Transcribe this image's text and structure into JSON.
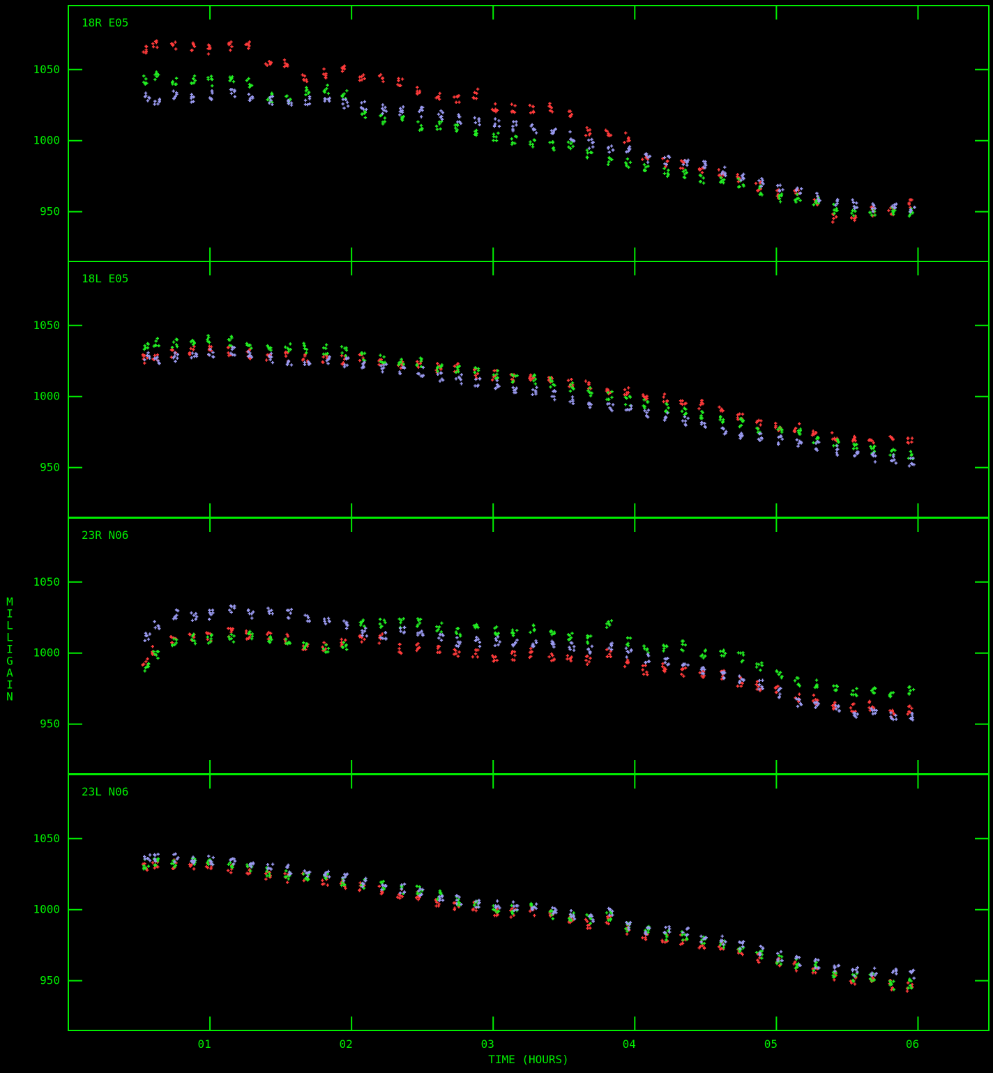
{
  "colors": {
    "axes": "#00ee00",
    "series_a": "#ff3b3b",
    "series_b": "#22ee22",
    "series_c": "#9a9af0",
    "background": "#000000"
  },
  "chart_data": {
    "type": "scatter",
    "xlabel": "TIME (HOURS)",
    "ylabel": "MILLIGAIN",
    "xlim": [
      0.0,
      6.5
    ],
    "x_ticks": [
      1,
      2,
      3,
      4,
      5,
      6
    ],
    "x_tick_labels": [
      "01",
      "02",
      "03",
      "04",
      "05",
      "06"
    ],
    "grid": false,
    "x": [
      0.55,
      0.62,
      0.75,
      0.88,
      1.0,
      1.15,
      1.28,
      1.42,
      1.55,
      1.68,
      1.82,
      1.95,
      2.08,
      2.22,
      2.35,
      2.48,
      2.62,
      2.75,
      2.88,
      3.02,
      3.15,
      3.28,
      3.42,
      3.55,
      3.68,
      3.82,
      3.95,
      4.08,
      4.22,
      4.35,
      4.48,
      4.62,
      4.75,
      4.88,
      5.02,
      5.15,
      5.28,
      5.42,
      5.55,
      5.68,
      5.82,
      5.95
    ],
    "panels": [
      {
        "label": "18R E05",
        "ylim": [
          915,
          1095
        ],
        "y_ticks": [
          950,
          1000,
          1050
        ],
        "series": [
          {
            "color_key": "series_a",
            "values": [
              1065,
              1068,
              1067,
              1066,
              1064,
              1066,
              1068,
              1055,
              1055,
              1045,
              1047,
              1050,
              1045,
              1043,
              1042,
              1035,
              1030,
              1030,
              1033,
              1023,
              1023,
              1022,
              1023,
              1018,
              1007,
              1005,
              1002,
              988,
              985,
              983,
              978,
              977,
              973,
              968,
              962,
              965,
              958,
              945,
              945,
              950,
              950,
              955
            ]
          },
          {
            "color_key": "series_b",
            "values": [
              1043,
              1045,
              1042,
              1043,
              1042,
              1043,
              1041,
              1030,
              1030,
              1035,
              1036,
              1032,
              1018,
              1015,
              1015,
              1010,
              1010,
              1009,
              1005,
              1003,
              1000,
              998,
              996,
              996,
              990,
              986,
              984,
              980,
              978,
              976,
              973,
              971,
              970,
              965,
              960,
              960,
              957,
              952,
              950,
              950,
              950,
              950
            ]
          },
          {
            "color_key": "series_c",
            "values": [
              1030,
              1028,
              1032,
              1030,
              1032,
              1034,
              1030,
              1028,
              1027,
              1028,
              1028,
              1026,
              1024,
              1022,
              1021,
              1020,
              1018,
              1015,
              1013,
              1012,
              1010,
              1008,
              1005,
              1003,
              998,
              995,
              993,
              988,
              986,
              984,
              982,
              978,
              975,
              970,
              967,
              965,
              960,
              957,
              955,
              953,
              952,
              952
            ]
          }
        ]
      },
      {
        "label": "18L E05",
        "ylim": [
          915,
          1095
        ],
        "y_ticks": [
          950,
          1000,
          1050
        ],
        "series": [
          {
            "color_key": "series_a",
            "values": [
              1026,
              1028,
              1030,
              1032,
              1032,
              1032,
              1030,
              1029,
              1028,
              1027,
              1026,
              1026,
              1026,
              1025,
              1023,
              1022,
              1020,
              1020,
              1016,
              1015,
              1013,
              1013,
              1012,
              1010,
              1008,
              1005,
              1003,
              1000,
              999,
              997,
              994,
              990,
              986,
              981,
              979,
              978,
              974,
              972,
              970,
              970,
              969,
              968
            ]
          },
          {
            "color_key": "series_b",
            "values": [
              1034,
              1038,
              1037,
              1040,
              1040,
              1039,
              1037,
              1036,
              1035,
              1034,
              1033,
              1032,
              1028,
              1027,
              1025,
              1024,
              1021,
              1020,
              1017,
              1015,
              1012,
              1012,
              1010,
              1007,
              1003,
              1000,
              997,
              995,
              992,
              990,
              988,
              985,
              982,
              977,
              975,
              976,
              970,
              967,
              964,
              962,
              960,
              959
            ]
          },
          {
            "color_key": "series_c",
            "values": [
              1028,
              1026,
              1028,
              1030,
              1031,
              1032,
              1029,
              1027,
              1025,
              1024,
              1025,
              1024,
              1022,
              1020,
              1019,
              1017,
              1014,
              1012,
              1010,
              1009,
              1006,
              1004,
              1001,
              998,
              995,
              992,
              990,
              987,
              985,
              983,
              981,
              977,
              974,
              971,
              969,
              967,
              965,
              962,
              960,
              957,
              956,
              954
            ]
          }
        ]
      },
      {
        "label": "23R N06",
        "ylim": [
          915,
          1095
        ],
        "y_ticks": [
          950,
          1000,
          1050
        ],
        "series": [
          {
            "color_key": "series_a",
            "values": [
              994,
              1002,
              1010,
              1010,
              1012,
              1015,
              1013,
              1012,
              1010,
              1005,
              1005,
              1008,
              1010,
              1010,
              1003,
              1005,
              1003,
              1000,
              1000,
              997,
              998,
              1000,
              998,
              997,
              995,
              1000,
              992,
              988,
              990,
              987,
              985,
              985,
              980,
              977,
              974,
              968,
              967,
              963,
              962,
              963,
              958,
              960
            ]
          },
          {
            "color_key": "series_b",
            "values": [
              990,
              998,
              1008,
              1010,
              1010,
              1010,
              1012,
              1010,
              1008,
              1006,
              1004,
              1005,
              1022,
              1021,
              1021,
              1022,
              1018,
              1015,
              1017,
              1015,
              1015,
              1017,
              1015,
              1012,
              1010,
              1020,
              1008,
              1003,
              1003,
              1005,
              1000,
              1000,
              997,
              990,
              985,
              980,
              978,
              975,
              972,
              975,
              971,
              973
            ]
          },
          {
            "color_key": "series_c",
            "values": [
              1012,
              1020,
              1027,
              1026,
              1027,
              1030,
              1028,
              1029,
              1028,
              1024,
              1022,
              1020,
              1015,
              1012,
              1015,
              1014,
              1010,
              1008,
              1008,
              1008,
              1006,
              1006,
              1005,
              1004,
              1003,
              1005,
              1000,
              996,
              993,
              992,
              988,
              985,
              982,
              978,
              972,
              965,
              964,
              960,
              958,
              960,
              955,
              956
            ]
          }
        ]
      },
      {
        "label": "23L N06",
        "ylim": [
          915,
          1095
        ],
        "y_ticks": [
          950,
          1000,
          1050
        ],
        "series": [
          {
            "color_key": "series_a",
            "values": [
              1030,
              1030,
              1032,
              1032,
              1030,
              1029,
              1027,
              1024,
              1022,
              1022,
              1020,
              1018,
              1016,
              1014,
              1011,
              1010,
              1006,
              1003,
              1002,
              999,
              998,
              999,
              996,
              992,
              990,
              993,
              986,
              982,
              980,
              979,
              975,
              974,
              970,
              966,
              962,
              960,
              957,
              954,
              950,
              951,
              947,
              946
            ]
          },
          {
            "color_key": "series_b",
            "values": [
              1032,
              1033,
              1033,
              1033,
              1033,
              1032,
              1030,
              1027,
              1025,
              1024,
              1022,
              1020,
              1018,
              1017,
              1014,
              1014,
              1010,
              1006,
              1004,
              1001,
              1000,
              1001,
              997,
              995,
              993,
              996,
              988,
              985,
              982,
              981,
              978,
              976,
              972,
              968,
              965,
              962,
              960,
              956,
              952,
              953,
              947,
              948
            ]
          },
          {
            "color_key": "series_c",
            "values": [
              1036,
              1036,
              1036,
              1036,
              1035,
              1034,
              1032,
              1030,
              1028,
              1026,
              1024,
              1022,
              1019,
              1017,
              1015,
              1013,
              1009,
              1007,
              1005,
              1003,
              1002,
              1002,
              999,
              996,
              995,
              998,
              989,
              986,
              985,
              984,
              980,
              978,
              975,
              971,
              967,
              964,
              962,
              959,
              956,
              957,
              955,
              955
            ]
          }
        ]
      }
    ]
  }
}
